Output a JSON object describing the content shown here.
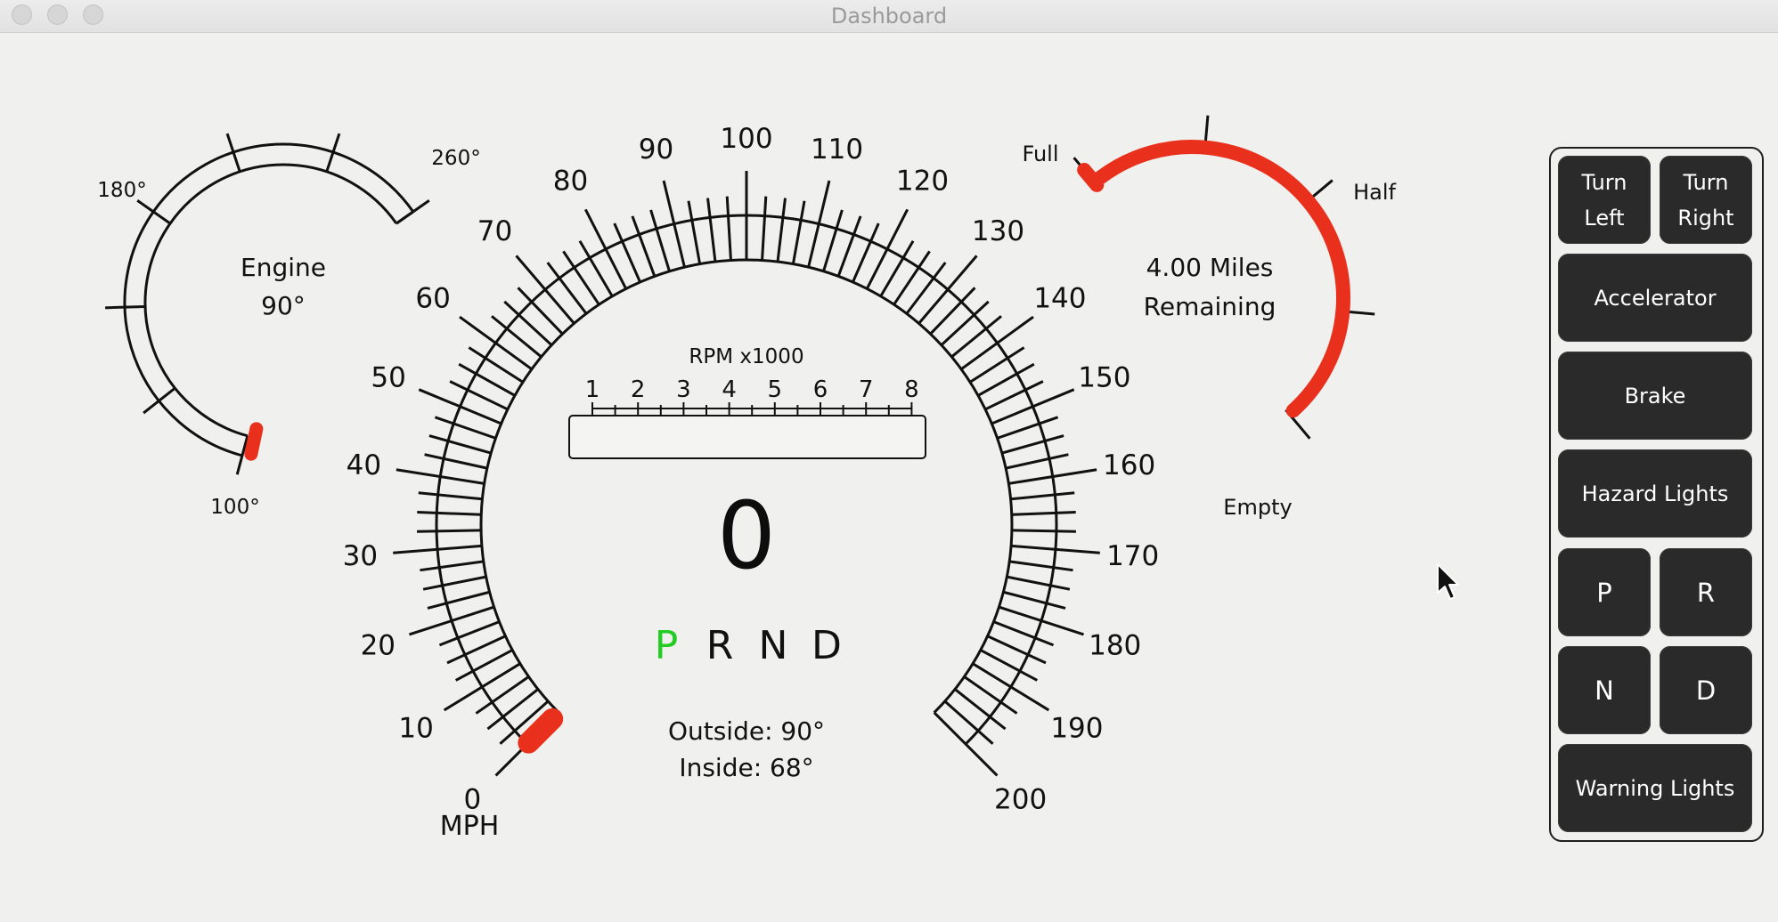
{
  "window": {
    "title": "Dashboard"
  },
  "engine_gauge": {
    "label_line1": "Engine",
    "label_line2": "90°",
    "tick_min": "100°",
    "tick_mid": "180°",
    "tick_max": "260°",
    "value": 90
  },
  "speedometer": {
    "ticks": [
      "0",
      "10",
      "20",
      "30",
      "40",
      "50",
      "60",
      "70",
      "80",
      "90",
      "100",
      "110",
      "120",
      "130",
      "140",
      "150",
      "160",
      "170",
      "180",
      "190",
      "200"
    ],
    "unit": "MPH",
    "value": 0,
    "value_text": "0",
    "needle_color": "#e8301c"
  },
  "rpm": {
    "label": "RPM x1000",
    "ticks": [
      "1",
      "2",
      "3",
      "4",
      "5",
      "6",
      "7",
      "8"
    ],
    "fill": 0
  },
  "gear": {
    "items": [
      "P",
      "R",
      "N",
      "D"
    ],
    "selected": "P",
    "selected_color": "#22cc22"
  },
  "temperature": {
    "outside": "Outside: 90°",
    "inside": "Inside: 68°"
  },
  "fuel_gauge": {
    "label_full": "Full",
    "label_half": "Half",
    "label_empty": "Empty",
    "remaining_line1": "4.00 Miles",
    "remaining_line2": "Remaining",
    "level": 1.0,
    "bar_color": "#e8301c"
  },
  "controls": {
    "turn_left": "Turn\nLeft",
    "turn_right": "Turn\nRight",
    "accelerator": "Accelerator",
    "brake": "Brake",
    "hazard": "Hazard Lights",
    "gear_p": "P",
    "gear_r": "R",
    "gear_n": "N",
    "gear_d": "D",
    "warning": "Warning Lights"
  }
}
